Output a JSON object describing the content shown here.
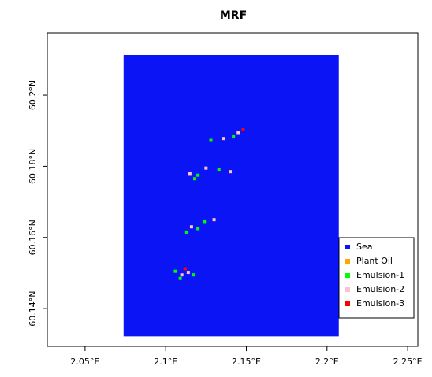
{
  "chart_data": {
    "type": "raster",
    "title": "MRF",
    "xlim": [
      2.0266,
      2.2563
    ],
    "ylim": [
      60.1294,
      60.2175
    ],
    "xticks": [
      {
        "value": 2.05,
        "label": "2.05°E"
      },
      {
        "value": 2.1,
        "label": "2.1°E"
      },
      {
        "value": 2.15,
        "label": "2.15°E"
      },
      {
        "value": 2.2,
        "label": "2.2°E"
      },
      {
        "value": 2.25,
        "label": "2.25°E"
      }
    ],
    "yticks": [
      {
        "value": 60.14,
        "label": "60.14°N"
      },
      {
        "value": 60.16,
        "label": "60.16°N"
      },
      {
        "value": 60.18,
        "label": "60.18°N"
      },
      {
        "value": 60.2,
        "label": "60.2°N"
      }
    ],
    "raster": {
      "xlim": [
        2.0739,
        2.2073
      ],
      "ylim": [
        60.1322,
        60.2113
      ],
      "color": "#0a14f5"
    },
    "legend": "right",
    "classes": [
      {
        "name": "Sea",
        "color": "#0a14f5"
      },
      {
        "name": "Plant Oil",
        "color": "#ffa500"
      },
      {
        "name": "Emulsion-1",
        "color": "#00ff00"
      },
      {
        "name": "Emulsion-2",
        "color": "#ffc0cb"
      },
      {
        "name": "Emulsion-3",
        "color": "#ff0000"
      }
    ],
    "points": [
      {
        "x": 2.142,
        "y": 60.1885,
        "class": 2
      },
      {
        "x": 2.136,
        "y": 60.1878,
        "class": 3
      },
      {
        "x": 2.128,
        "y": 60.1875,
        "class": 2
      },
      {
        "x": 2.148,
        "y": 60.1905,
        "class": 4
      },
      {
        "x": 2.145,
        "y": 60.1895,
        "class": 3
      },
      {
        "x": 2.12,
        "y": 60.1775,
        "class": 2
      },
      {
        "x": 2.115,
        "y": 60.178,
        "class": 3
      },
      {
        "x": 2.125,
        "y": 60.1795,
        "class": 3
      },
      {
        "x": 2.133,
        "y": 60.1792,
        "class": 2
      },
      {
        "x": 2.14,
        "y": 60.1785,
        "class": 3
      },
      {
        "x": 2.118,
        "y": 60.1765,
        "class": 2
      },
      {
        "x": 2.12,
        "y": 60.1625,
        "class": 2
      },
      {
        "x": 2.116,
        "y": 60.163,
        "class": 3
      },
      {
        "x": 2.124,
        "y": 60.1645,
        "class": 2
      },
      {
        "x": 2.13,
        "y": 60.165,
        "class": 3
      },
      {
        "x": 2.113,
        "y": 60.1615,
        "class": 2
      },
      {
        "x": 2.11,
        "y": 60.1495,
        "class": 3
      },
      {
        "x": 2.106,
        "y": 60.1505,
        "class": 2
      },
      {
        "x": 2.114,
        "y": 60.1502,
        "class": 3
      },
      {
        "x": 2.109,
        "y": 60.1485,
        "class": 2
      },
      {
        "x": 2.117,
        "y": 60.1495,
        "class": 2
      },
      {
        "x": 2.112,
        "y": 60.1512,
        "class": 4
      }
    ]
  }
}
